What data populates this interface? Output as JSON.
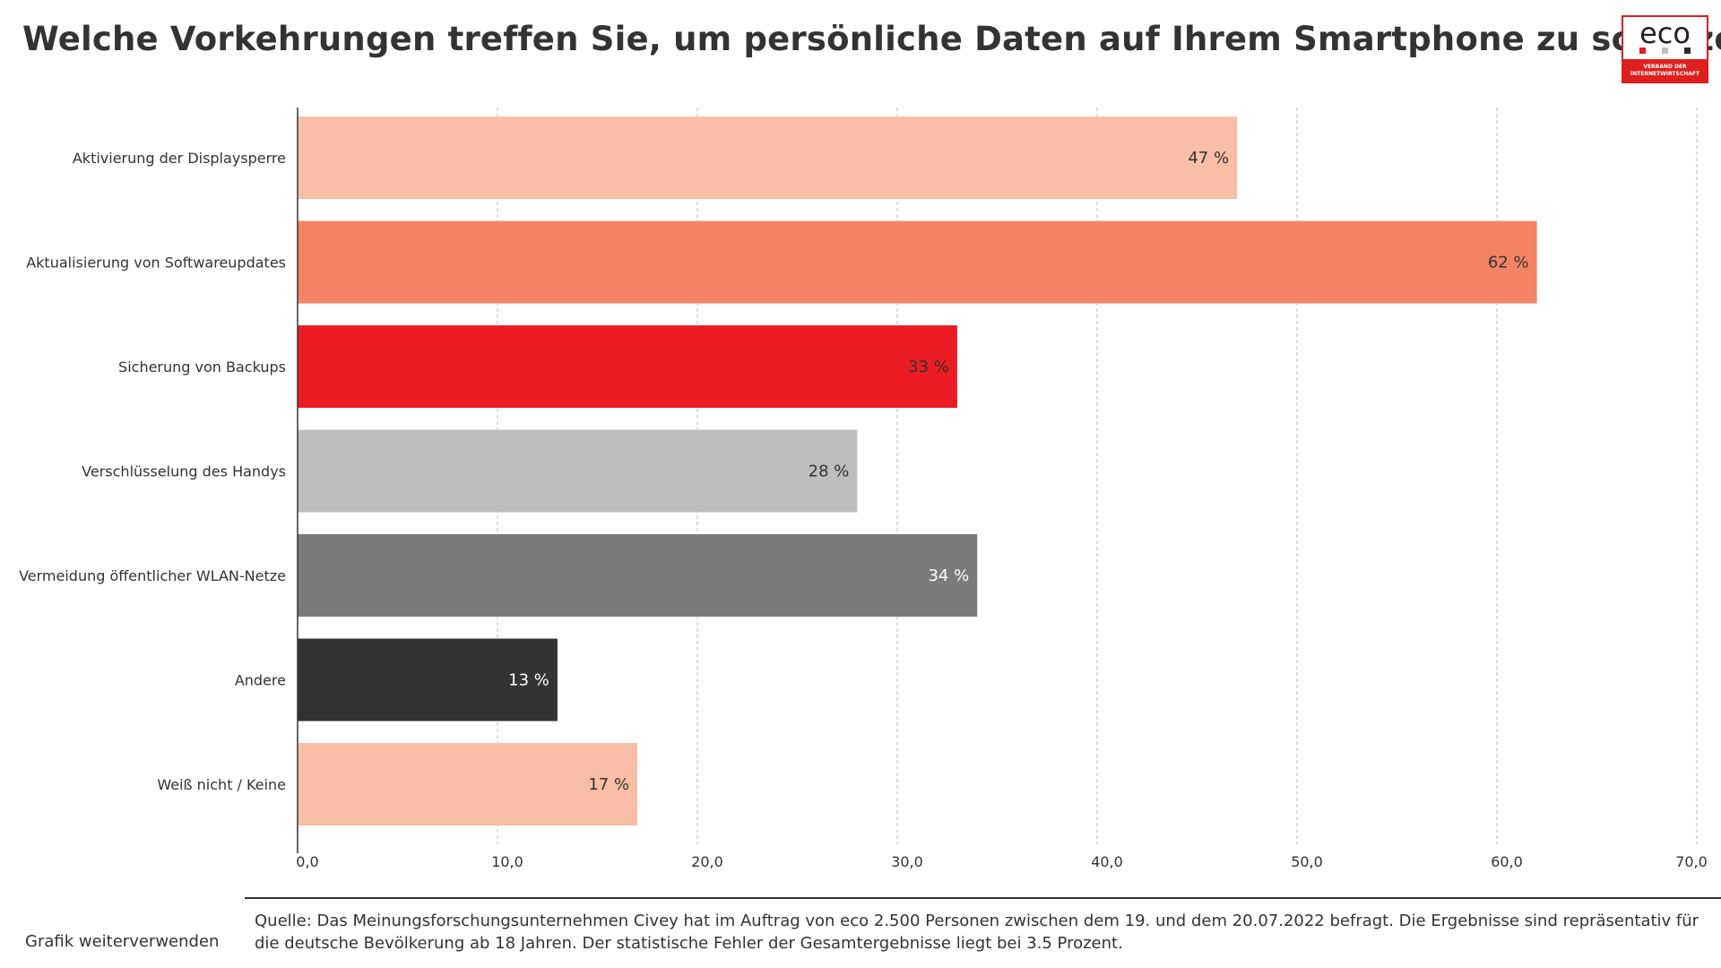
{
  "title": "Welche Vorkehrungen treffen Sie, um persönliche Daten auf Ihrem Smartphone zu schützen?",
  "logo": {
    "text": "eco",
    "band_line1": "VERBAND DER",
    "band_line2": "INTERNETWIRTSCHAFT",
    "dot_colors": [
      "#e0201e",
      "#bcbdbf",
      "#2b2b2b"
    ]
  },
  "chart_data": {
    "type": "bar",
    "orientation": "horizontal",
    "categories": [
      "Aktivierung der Displaysperre",
      "Aktualisierung von Softwareupdates",
      "Sicherung von Backups",
      "Verschlüsselung des Handys",
      "Vermeidung öffentlicher WLAN-Netze",
      "Andere",
      "Weiß nicht / Keine"
    ],
    "values": [
      47,
      62,
      33,
      28,
      34,
      13,
      17
    ],
    "value_labels": [
      "47 %",
      "62 %",
      "33 %",
      "28 %",
      "34 %",
      "13 %",
      "17 %"
    ],
    "colors": [
      "#f9bea6",
      "#f48366",
      "#ec1c24",
      "#bcbdbf",
      "#7b7b7b",
      "#333333",
      "#f9bea6"
    ],
    "label_colors": [
      "#333333",
      "#333333",
      "#333333",
      "#333333",
      "#ffffff",
      "#ffffff",
      "#333333"
    ],
    "xlim": [
      0,
      70
    ],
    "x_ticks": [
      0,
      10,
      20,
      30,
      40,
      50,
      60,
      70
    ],
    "x_tick_labels": [
      "0,0",
      "10,0",
      "20,0",
      "30,0",
      "40,0",
      "50,0",
      "60,0",
      "70,0"
    ],
    "grid": "vertical dashed",
    "legend": "none"
  },
  "footer": {
    "reuse_link": "Grafik weiterverwenden",
    "source": "Quelle: Das Meinungsforschungsunternehmen Civey hat im Auftrag von eco 2.500 Personen zwischen dem 19. und dem 20.07.2022 befragt. Die Ergebnisse sind repräsentativ für die deutsche Bevölkerung ab 18 Jahren. Der statistische Fehler der Gesamtergebnisse liegt bei 3.5 Prozent."
  }
}
